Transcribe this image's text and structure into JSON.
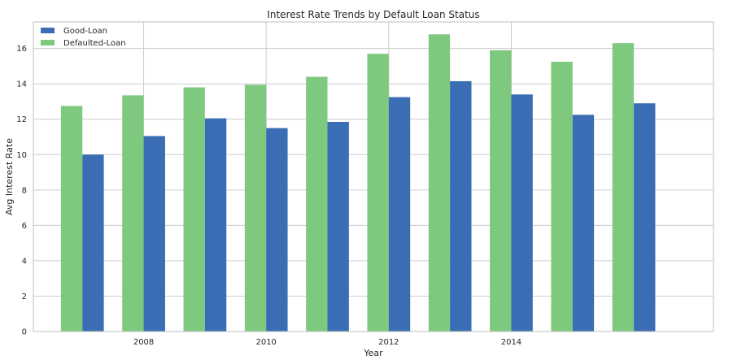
{
  "chart_data": {
    "type": "bar",
    "title": "Interest Rate Trends by Default Loan Status",
    "xlabel": "Year",
    "ylabel": "Avg Interest Rate",
    "x": [
      2007,
      2008,
      2009,
      2010,
      2011,
      2012,
      2013,
      2014,
      2015,
      2016
    ],
    "x_ticks": [
      2008,
      2010,
      2012,
      2014
    ],
    "xlim": [
      2006.2,
      2017.3
    ],
    "ylim": [
      0,
      17.5
    ],
    "y_ticks": [
      0,
      2,
      4,
      6,
      8,
      10,
      12,
      14,
      16
    ],
    "grid": true,
    "legend_position": "top-left",
    "series": [
      {
        "name": "Good-Loan",
        "color": "#3a6db3",
        "values": [
          10.0,
          11.05,
          12.05,
          11.5,
          11.85,
          13.25,
          14.15,
          13.4,
          12.25,
          12.9
        ]
      },
      {
        "name": "Defaulted-Loan",
        "color": "#7fc97f",
        "values": [
          12.75,
          13.35,
          13.8,
          13.95,
          14.4,
          15.7,
          16.8,
          15.9,
          15.25,
          16.3
        ]
      }
    ]
  }
}
